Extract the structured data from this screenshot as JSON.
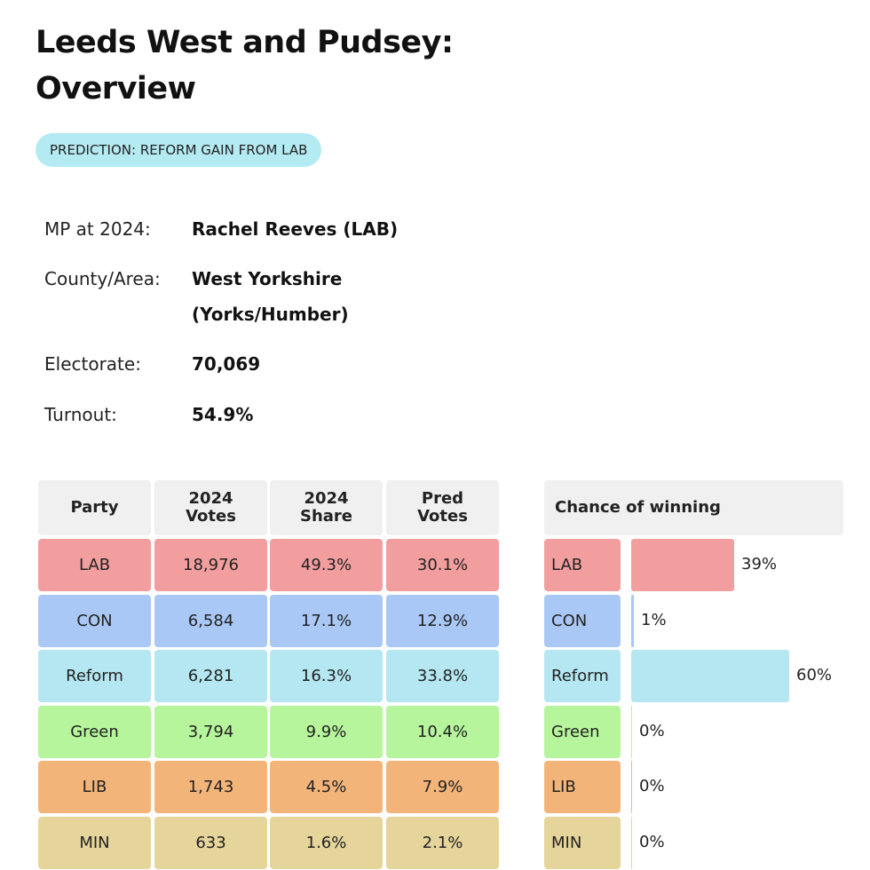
{
  "page": {
    "title_line1": "Leeds West and Pudsey:",
    "title_line2": "Overview",
    "prediction": "PREDICTION: REFORM GAIN FROM LAB"
  },
  "info": {
    "mp_label": "MP at 2024:",
    "mp_value": "Rachel Reeves  (LAB)",
    "county_label": "County/Area:",
    "county_value_line1": "West Yorkshire",
    "county_value_line2": "(Yorks/Humber)",
    "electorate_label": "Electorate:",
    "electorate_value": "70,069",
    "turnout_label": "Turnout:",
    "turnout_value": "54.9%"
  },
  "table": {
    "headers": {
      "party": "Party",
      "votes_2024_l1": "2024",
      "votes_2024_l2": "Votes",
      "share_2024_l1": "2024",
      "share_2024_l2": "Share",
      "pred_l1": "Pred",
      "pred_l2": "Votes"
    },
    "rows": [
      {
        "party": "LAB",
        "votes": "18,976",
        "share": "49.3%",
        "pred": "30.1%",
        "color": "#f29e9e"
      },
      {
        "party": "CON",
        "votes": "6,584",
        "share": "17.1%",
        "pred": "12.9%",
        "color": "#a9c8f5"
      },
      {
        "party": "Reform",
        "votes": "6,281",
        "share": "16.3%",
        "pred": "33.8%",
        "color": "#b4e7f2"
      },
      {
        "party": "Green",
        "votes": "3,794",
        "share": "9.9%",
        "pred": "10.4%",
        "color": "#b6f59c"
      },
      {
        "party": "LIB",
        "votes": "1,743",
        "share": "4.5%",
        "pred": "7.9%",
        "color": "#f3b47a"
      },
      {
        "party": "MIN",
        "votes": "633",
        "share": "1.6%",
        "pred": "2.1%",
        "color": "#e6d59b"
      }
    ]
  },
  "chart_data": {
    "type": "bar",
    "title": "Chance of winning",
    "categories": [
      "LAB",
      "CON",
      "Reform",
      "Green",
      "LIB",
      "MIN"
    ],
    "values": [
      39,
      1,
      60,
      0,
      0,
      0
    ],
    "labels": [
      "39%",
      "1%",
      "60%",
      "0%",
      "0%",
      "0%"
    ],
    "unit": "%",
    "ylim": [
      0,
      60
    ],
    "colors": [
      "#f29e9e",
      "#a9c8f5",
      "#b4e7f2",
      "#b6f59c",
      "#f3b47a",
      "#e6d59b"
    ]
  }
}
